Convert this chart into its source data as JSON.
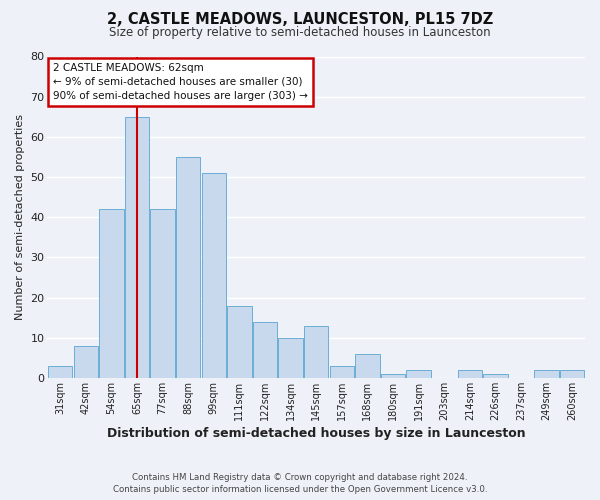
{
  "title": "2, CASTLE MEADOWS, LAUNCESTON, PL15 7DZ",
  "subtitle": "Size of property relative to semi-detached houses in Launceston",
  "xlabel": "Distribution of semi-detached houses by size in Launceston",
  "ylabel": "Number of semi-detached properties",
  "bar_color": "#c8d9ee",
  "bar_edge_color": "#6baed6",
  "bg_color": "#eef2f8",
  "grid_color": "#ffffff",
  "categories": [
    "31sqm",
    "42sqm",
    "54sqm",
    "65sqm",
    "77sqm",
    "88sqm",
    "99sqm",
    "111sqm",
    "122sqm",
    "134sqm",
    "145sqm",
    "157sqm",
    "168sqm",
    "180sqm",
    "191sqm",
    "203sqm",
    "214sqm",
    "226sqm",
    "237sqm",
    "249sqm",
    "260sqm"
  ],
  "values": [
    3,
    8,
    42,
    65,
    42,
    55,
    51,
    18,
    14,
    10,
    13,
    3,
    6,
    1,
    2,
    0,
    2,
    1,
    0,
    2,
    2
  ],
  "ylim": [
    0,
    80
  ],
  "yticks": [
    0,
    10,
    20,
    30,
    40,
    50,
    60,
    70,
    80
  ],
  "vline_x": 3.5,
  "vline_color": "#cc0000",
  "annotation_title": "2 CASTLE MEADOWS: 62sqm",
  "annotation_line1": "← 9% of semi-detached houses are smaller (30)",
  "annotation_line2": "90% of semi-detached houses are larger (303) →",
  "annotation_box_color": "#ffffff",
  "annotation_box_edge": "#cc0000",
  "footer1": "Contains HM Land Registry data © Crown copyright and database right 2024.",
  "footer2": "Contains public sector information licensed under the Open Government Licence v3.0."
}
